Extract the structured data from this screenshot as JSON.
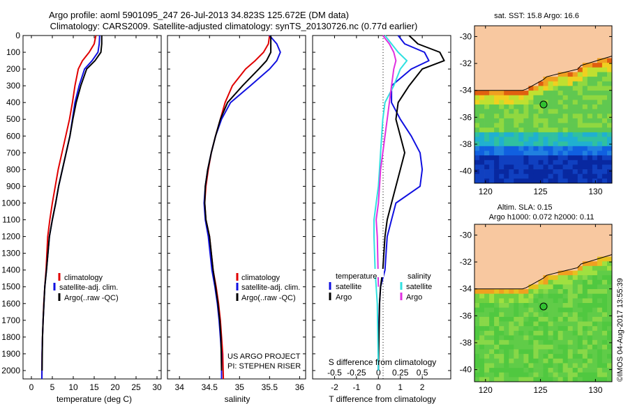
{
  "figure": {
    "title_line1": "Argo profile: aoml 5901095_247 26-Jul-2013 34.823S 125.672E (DM data)",
    "title_line2": "Climatology: CARS2009. Satellite-adjusted climatology: synTS_20130726.nc (0.77d earlier)",
    "project_line1": "US ARGO PROJECT",
    "project_line2": "PI: STEPHEN RISER",
    "watermark": "©IMOS 04-Aug-2017 13:55:39"
  },
  "colors": {
    "climatology": "#e00000",
    "satellite": "#1010e0",
    "argo": "#000000",
    "sal_satellite": "#30e0e0",
    "sal_argo": "#e030e0",
    "land": "#f8c8a0"
  },
  "chart_data": [
    {
      "id": "temperature",
      "type": "line",
      "xlabel": "temperature (deg C)",
      "ylabel": "",
      "xlim": [
        -2,
        31
      ],
      "ylim": [
        2050,
        0
      ],
      "xticks": [
        0,
        5,
        10,
        15,
        20,
        25,
        30
      ],
      "yticks": [
        0,
        100,
        200,
        300,
        400,
        500,
        600,
        700,
        800,
        900,
        1000,
        1100,
        1200,
        1300,
        1400,
        1500,
        1600,
        1700,
        1800,
        1900,
        2000
      ],
      "legend": [
        "climatology",
        "satellite-adj. clim.",
        "Argo(..raw -QC)"
      ],
      "series": [
        {
          "name": "climatology",
          "color": "#e00000",
          "x": [
            15.4,
            15.0,
            13.8,
            12.2,
            11.2,
            10.4,
            9.8,
            9.1,
            8.2,
            7.3,
            6.4,
            5.7,
            5.0,
            4.4,
            3.9,
            3.5,
            3.2,
            2.95,
            2.8,
            2.65,
            2.55,
            2.5
          ],
          "y": [
            0,
            50,
            100,
            150,
            200,
            300,
            400,
            500,
            600,
            700,
            800,
            900,
            1000,
            1100,
            1200,
            1400,
            1500,
            1600,
            1700,
            1800,
            1900,
            2050
          ]
        },
        {
          "name": "satellite-adj. clim.",
          "color": "#1010e0",
          "x": [
            16.3,
            16.2,
            15.9,
            14.5,
            12.7,
            11.4,
            10.4,
            9.8,
            9.2,
            8.3,
            7.4,
            6.5,
            5.8,
            5.0,
            4.3,
            3.6,
            3.2,
            3.0,
            2.8,
            2.65,
            2.55,
            2.5
          ],
          "y": [
            0,
            50,
            100,
            150,
            200,
            300,
            400,
            500,
            600,
            700,
            800,
            900,
            1000,
            1100,
            1200,
            1400,
            1500,
            1600,
            1700,
            1800,
            1900,
            2050
          ]
        },
        {
          "name": "Argo(..raw -QC)",
          "color": "#000000",
          "x": [
            16.8,
            16.8,
            16.6,
            15.2,
            13.2,
            11.8,
            10.7,
            9.9,
            9.2,
            8.3,
            7.4,
            6.5,
            5.8,
            5.0,
            4.3,
            3.6,
            3.2,
            3.0,
            2.8,
            2.65,
            2.55
          ],
          "y": [
            0,
            50,
            100,
            150,
            200,
            300,
            400,
            500,
            600,
            700,
            800,
            900,
            1000,
            1100,
            1200,
            1400,
            1500,
            1600,
            1700,
            1800,
            2000
          ]
        }
      ]
    },
    {
      "id": "salinity",
      "type": "line",
      "xlabel": "salinity",
      "ylabel": "",
      "xlim": [
        33.8,
        36.1
      ],
      "ylim": [
        2050,
        0
      ],
      "xticks": [
        34,
        34.5,
        35,
        35.5,
        36
      ],
      "legend": [
        "climatology",
        "satellite-adj. clim.",
        "Argo(..raw -QC)"
      ],
      "series": [
        {
          "name": "climatology",
          "color": "#e00000",
          "x": [
            35.5,
            35.48,
            35.4,
            35.26,
            35.1,
            34.88,
            34.76,
            34.68,
            34.6,
            34.53,
            34.48,
            34.44,
            34.42,
            34.44,
            34.5,
            34.56,
            34.61,
            34.65,
            34.68,
            34.7,
            34.72,
            34.73
          ],
          "y": [
            0,
            50,
            100,
            150,
            200,
            300,
            400,
            500,
            600,
            700,
            800,
            900,
            1000,
            1100,
            1200,
            1400,
            1500,
            1600,
            1700,
            1800,
            1900,
            2050
          ]
        },
        {
          "name": "satellite-adj. clim.",
          "color": "#1010e0",
          "x": [
            35.5,
            35.62,
            35.68,
            35.62,
            35.5,
            35.18,
            34.85,
            34.7,
            34.6,
            34.53,
            34.47,
            34.43,
            34.41,
            34.43,
            34.48,
            34.54,
            34.59,
            34.63,
            34.66,
            34.68,
            34.7,
            34.7
          ],
          "y": [
            0,
            50,
            100,
            150,
            200,
            300,
            400,
            500,
            600,
            700,
            800,
            900,
            1000,
            1100,
            1200,
            1400,
            1500,
            1600,
            1700,
            1800,
            1900,
            2050
          ]
        },
        {
          "name": "Argo(..raw -QC)",
          "color": "#000000",
          "x": [
            35.52,
            35.52,
            35.52,
            35.45,
            35.32,
            35.05,
            34.8,
            34.68,
            34.6,
            34.53,
            34.47,
            34.43,
            34.42,
            34.44,
            34.5,
            34.56,
            34.6,
            34.64,
            34.67,
            34.69,
            34.7
          ],
          "y": [
            0,
            50,
            100,
            150,
            200,
            300,
            400,
            500,
            600,
            700,
            800,
            900,
            1000,
            1100,
            1200,
            1400,
            1500,
            1600,
            1700,
            1800,
            2000
          ]
        }
      ]
    },
    {
      "id": "difference",
      "type": "line",
      "xlabel": "T difference from climatology",
      "xlabel_top": "S difference from climatology",
      "ylabel": "",
      "xlim": [
        -3,
        3.3
      ],
      "ylim": [
        2050,
        0
      ],
      "xticks": [
        -2,
        -1,
        0,
        1,
        2
      ],
      "xtick_labels_top": [
        "-0.5",
        "-0.25",
        "0",
        "0.25",
        "0.5"
      ],
      "legend_temperature_title": "temperature",
      "legend_salinity_title": "salinity",
      "legend_temperature": [
        "satellite",
        "Argo"
      ],
      "legend_salinity": [
        "satellite",
        "Argo"
      ],
      "series": [
        {
          "name": "T satellite",
          "color": "#1010e0",
          "x": [
            0.9,
            1.2,
            2.1,
            2.3,
            1.5,
            0.6,
            0.6,
            1.0,
            1.5,
            1.9,
            2.0,
            1.9,
            0.8,
            0.6,
            0.4,
            0.3,
            0.1,
            0.05,
            0.0,
            0.0
          ],
          "y": [
            0,
            50,
            100,
            150,
            200,
            300,
            400,
            500,
            600,
            700,
            800,
            900,
            1000,
            1100,
            1200,
            1400,
            1500,
            1600,
            1800,
            2000
          ]
        },
        {
          "name": "T Argo",
          "color": "#000000",
          "x": [
            1.4,
            1.8,
            2.8,
            3.0,
            2.0,
            1.4,
            0.9,
            0.8,
            1.0,
            1.2,
            1.0,
            0.8,
            0.6,
            0.4,
            0.3,
            0.2,
            0.1,
            0.05,
            0.0
          ],
          "y": [
            0,
            50,
            100,
            150,
            200,
            300,
            400,
            500,
            600,
            700,
            800,
            900,
            1000,
            1100,
            1200,
            1400,
            1500,
            1600,
            2000
          ]
        },
        {
          "name": "S satellite",
          "color": "#30e0e0",
          "x": [
            0.3,
            0.6,
            0.9,
            1.3,
            1.0,
            0.7,
            0.3,
            0.2,
            0.15,
            0.1,
            0.05,
            0.0,
            -0.1,
            -0.2,
            -0.2,
            -0.15,
            -0.1,
            -0.05,
            0.0
          ],
          "y": [
            0,
            50,
            100,
            150,
            200,
            300,
            400,
            500,
            600,
            700,
            800,
            900,
            1000,
            1100,
            1200,
            1400,
            1500,
            1600,
            2000
          ]
        },
        {
          "name": "S Argo",
          "color": "#e030e0",
          "x": [
            0.2,
            0.5,
            0.7,
            0.8,
            0.7,
            0.6,
            0.5,
            0.4,
            0.3,
            0.2,
            0.1,
            0.05,
            0.0,
            -0.1,
            -0.05,
            0.0
          ],
          "y": [
            0,
            50,
            100,
            150,
            200,
            300,
            400,
            500,
            600,
            700,
            800,
            900,
            1000,
            1100,
            1200,
            1500
          ]
        }
      ]
    },
    {
      "id": "sst-map",
      "type": "heatmap",
      "title": "sat. SST: 15.8 Argo: 16.6",
      "xticks": [
        120,
        125,
        130
      ],
      "yticks": [
        -30,
        -32,
        -34,
        -36,
        -38,
        -40
      ],
      "xlim": [
        119,
        131.5
      ],
      "ylim": [
        -40.9,
        -29.2
      ],
      "argo_point": {
        "lon": 125.67,
        "lat": -34.82
      }
    },
    {
      "id": "sla-map",
      "type": "heatmap",
      "title_line1": "Altim. SLA: 0.15",
      "title_line2": "Argo h1000: 0.072 h2000: 0.11",
      "xticks": [
        120,
        125,
        130
      ],
      "yticks": [
        -30,
        -32,
        -34,
        -36,
        -38,
        -40
      ],
      "xlim": [
        119,
        131.5
      ],
      "ylim": [
        -40.9,
        -29.2
      ],
      "argo_point": {
        "lon": 125.67,
        "lat": -34.82
      }
    }
  ]
}
